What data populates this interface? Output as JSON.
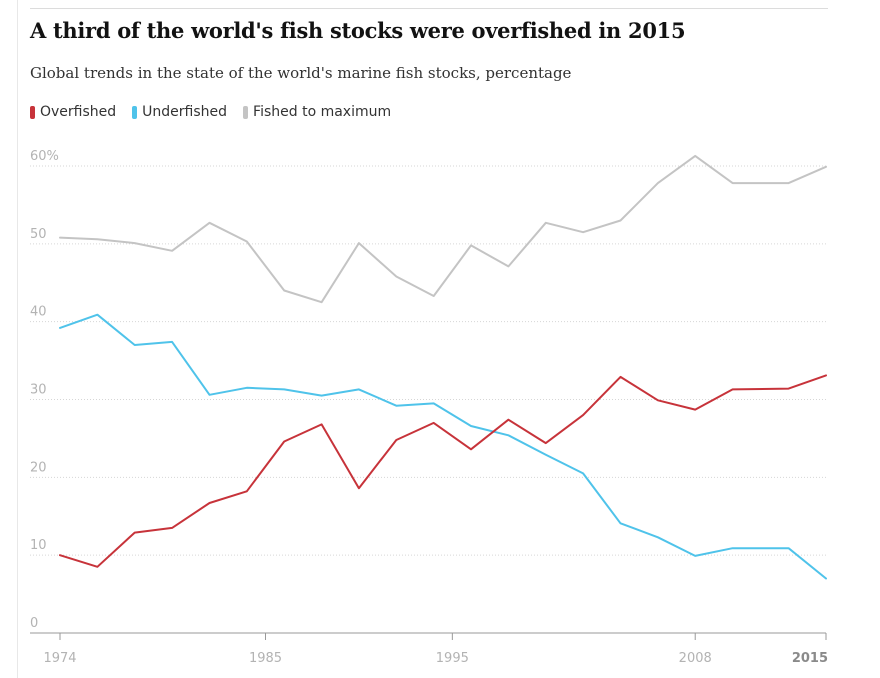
{
  "title": "A third of the world's fish stocks were overfished in 2015",
  "subtitle": "Global trends in the state of the world's marine fish stocks, percentage",
  "legend": [
    {
      "label": "Overfished",
      "color": "#c7333a"
    },
    {
      "label": "Underfished",
      "color": "#4fc3ea"
    },
    {
      "label": "Fished to maximum",
      "color": "#c4c4c4"
    }
  ],
  "chart_data": {
    "type": "line",
    "title": "A third of the world's fish stocks were overfished in 2015",
    "xlabel": "",
    "ylabel": "",
    "xlim": [
      1974,
      2015
    ],
    "ylim": [
      0,
      60
    ],
    "y_ticks": [
      "0",
      "10",
      "20",
      "30",
      "40",
      "50",
      "60%"
    ],
    "x_ticks": [
      "1974",
      "1985",
      "1995",
      "2008",
      "2015"
    ],
    "x": [
      1974,
      1976,
      1978,
      1980,
      1982,
      1984,
      1986,
      1988,
      1990,
      1992,
      1994,
      1996,
      1998,
      2000,
      2002,
      2004,
      2006,
      2008,
      2010,
      2013,
      2015
    ],
    "series": [
      {
        "name": "Overfished",
        "color": "#c7333a",
        "values": [
          10.0,
          8.5,
          12.9,
          13.5,
          16.7,
          18.2,
          24.6,
          26.8,
          18.6,
          24.8,
          27.0,
          23.6,
          27.4,
          24.4,
          28.0,
          32.9,
          29.9,
          28.7,
          31.3,
          31.4,
          33.1
        ]
      },
      {
        "name": "Underfished",
        "color": "#4fc3ea",
        "values": [
          39.2,
          40.9,
          37.0,
          37.4,
          30.6,
          31.5,
          31.3,
          30.5,
          31.3,
          29.2,
          29.5,
          26.6,
          25.4,
          22.9,
          20.5,
          14.1,
          12.3,
          9.9,
          10.9,
          10.9,
          7.0
        ]
      },
      {
        "name": "Fished to maximum",
        "color": "#c4c4c4",
        "values": [
          50.8,
          50.6,
          50.1,
          49.1,
          52.7,
          50.3,
          44.0,
          42.5,
          50.1,
          45.8,
          43.3,
          49.8,
          47.1,
          52.7,
          51.5,
          53.0,
          57.8,
          61.3,
          57.8,
          57.8,
          59.9
        ]
      }
    ]
  }
}
